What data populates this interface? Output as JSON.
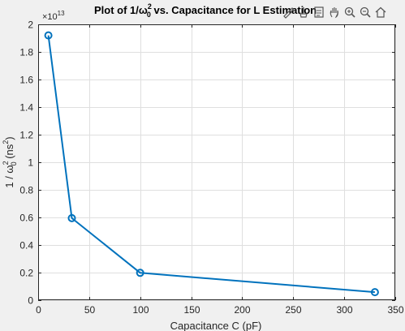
{
  "toolbar": {
    "icons": [
      "brush-icon",
      "data-tips-icon",
      "datacursor-icon",
      "pan-icon",
      "zoom-in-icon",
      "zoom-out-icon",
      "home-icon"
    ]
  },
  "colors": {
    "line": "#0072bd",
    "axes_bg": "#ffffff",
    "figure_bg": "#f0f0f0",
    "grid": "#dfdfdf"
  },
  "chart_data": {
    "type": "line",
    "title_main": "Plot of 1/ω",
    "title_sup": "2",
    "title_sub": "0",
    "title_rest": " vs. Capacitance for L Estimation",
    "xlabel": "Capacitance C (pF)",
    "ylabel_prefix": "1 / ω",
    "ylabel_sup": "2",
    "ylabel_sub": "0",
    "ylabel_suffix": " (ns",
    "ylabel_unit_sup": "2",
    "ylabel_end": ")",
    "y_exponent_base": "×10",
    "y_exponent_power": "13",
    "xlim": [
      0,
      350
    ],
    "ylim": [
      0,
      2
    ],
    "xticks": [
      0,
      50,
      100,
      150,
      200,
      250,
      300,
      350
    ],
    "xtick_labels": [
      "0",
      "50",
      "100",
      "150",
      "200",
      "250",
      "300",
      "350"
    ],
    "yticks": [
      0,
      0.2,
      0.4,
      0.6,
      0.8,
      1,
      1.2,
      1.4,
      1.6,
      1.8,
      2
    ],
    "ytick_labels": [
      "0",
      "0.2",
      "0.4",
      "0.6",
      "0.8",
      "1",
      "1.2",
      "1.4",
      "1.6",
      "1.8",
      "2"
    ],
    "grid": true,
    "x": [
      10,
      33,
      100,
      330
    ],
    "y": [
      1.92,
      0.595,
      0.198,
      0.058
    ],
    "marker": "circle"
  }
}
